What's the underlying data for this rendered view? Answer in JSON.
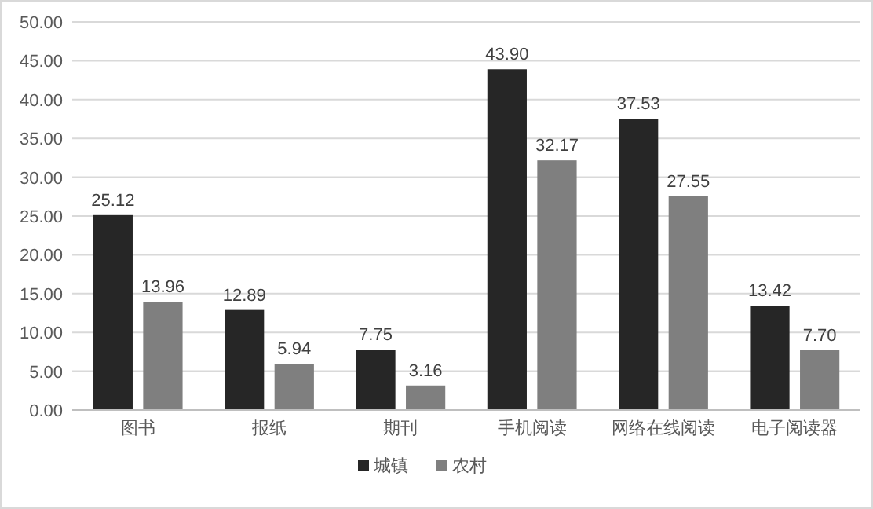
{
  "chart_data": {
    "type": "bar",
    "categories": [
      "图书",
      "报纸",
      "期刊",
      "手机阅读",
      "网络在线阅读",
      "电子阅读器"
    ],
    "series": [
      {
        "name": "城镇",
        "color": "#262626",
        "values": [
          25.12,
          12.89,
          7.75,
          43.9,
          37.53,
          13.42
        ],
        "value_labels": [
          "25.12",
          "12.89",
          "7.75",
          "43.90",
          "37.53",
          "13.42"
        ]
      },
      {
        "name": "农村",
        "color": "#7f7f7f",
        "values": [
          13.96,
          5.94,
          3.16,
          32.17,
          27.55,
          7.7
        ],
        "value_labels": [
          "13.96",
          "5.94",
          "3.16",
          "32.17",
          "27.55",
          "7.70"
        ]
      }
    ],
    "ylim": [
      0,
      50
    ],
    "yticks": [
      {
        "value": 0,
        "label": "0.00"
      },
      {
        "value": 5,
        "label": "5.00"
      },
      {
        "value": 10,
        "label": "10.00"
      },
      {
        "value": 15,
        "label": "15.00"
      },
      {
        "value": 20,
        "label": "20.00"
      },
      {
        "value": 25,
        "label": "25.00"
      },
      {
        "value": 30,
        "label": "30.00"
      },
      {
        "value": 35,
        "label": "35.00"
      },
      {
        "value": 40,
        "label": "40.00"
      },
      {
        "value": 45,
        "label": "45.00"
      },
      {
        "value": 50,
        "label": "50.00"
      }
    ],
    "grid": "y",
    "legend": "bottom"
  }
}
